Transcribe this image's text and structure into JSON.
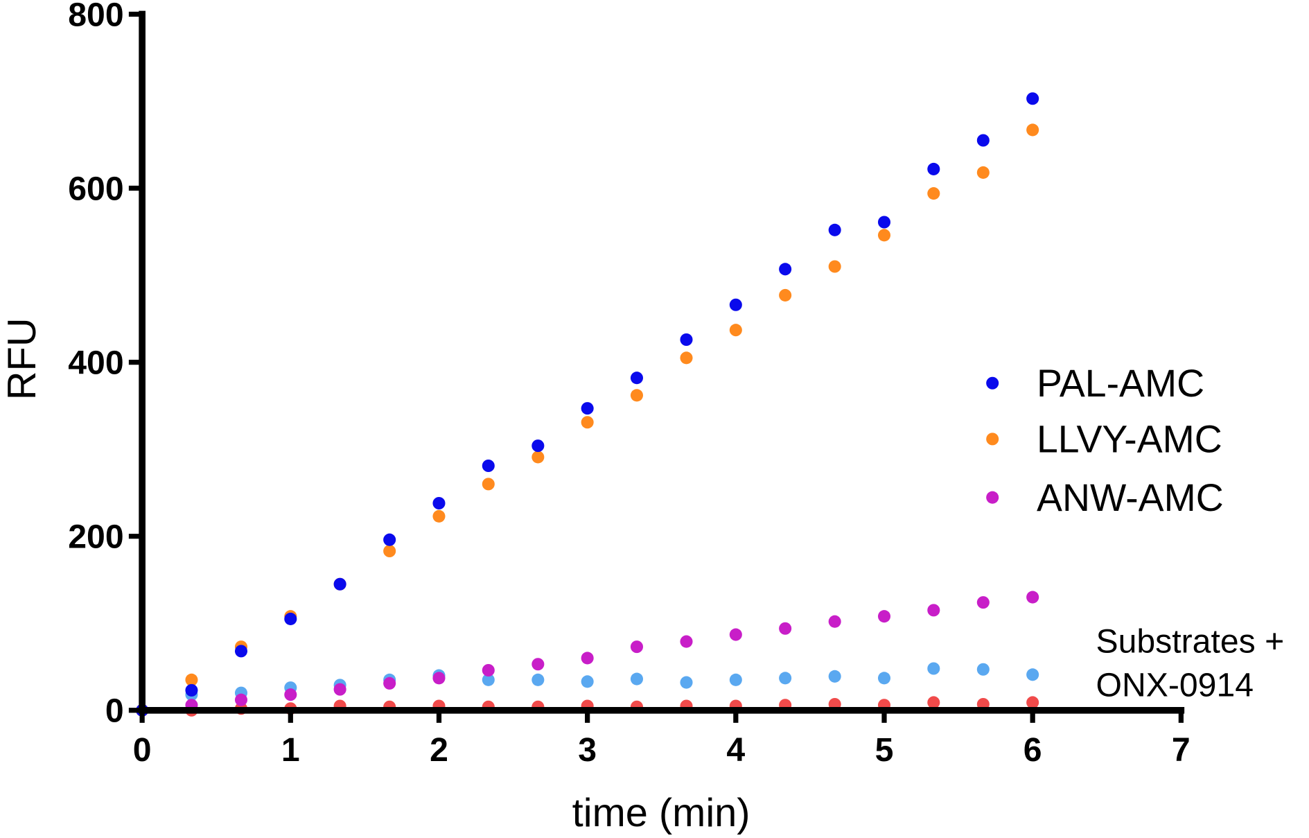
{
  "chart_data": {
    "type": "scatter",
    "xlabel": "time (min)",
    "ylabel": "RFU",
    "xlim": [
      0,
      7
    ],
    "ylim": [
      0,
      800
    ],
    "xticks": [
      "0",
      "1",
      "2",
      "3",
      "4",
      "5",
      "6",
      "7"
    ],
    "yticks": [
      "0",
      "200",
      "400",
      "600",
      "800"
    ],
    "grid": false,
    "legend_position": "right",
    "x": [
      0,
      0.333,
      0.667,
      1,
      1.333,
      1.667,
      2,
      2.333,
      2.667,
      3,
      3.333,
      3.667,
      4,
      4.333,
      4.667,
      5,
      5.333,
      5.667,
      6
    ],
    "series": [
      {
        "name": "PAL-AMC",
        "color": "#0a0aec",
        "values": [
          0,
          23,
          68,
          105,
          145,
          196,
          238,
          281,
          304,
          347,
          382,
          426,
          466,
          507,
          552,
          561,
          622,
          655,
          703
        ]
      },
      {
        "name": "LLVY-AMC",
        "color": "#ff8a1e",
        "values": [
          0,
          35,
          73,
          108,
          145,
          183,
          223,
          260,
          291,
          331,
          362,
          405,
          437,
          477,
          510,
          546,
          594,
          618,
          667
        ]
      },
      {
        "name": "ANW-AMC",
        "color": "#c81ec8",
        "values": [
          0,
          6,
          12,
          18,
          24,
          31,
          37,
          46,
          53,
          60,
          73,
          79,
          87,
          94,
          102,
          108,
          115,
          124,
          130
        ]
      },
      {
        "color": "#5aa8f0",
        "values": [
          0,
          18,
          20,
          26,
          29,
          35,
          40,
          35,
          35,
          33,
          36,
          32,
          35,
          37,
          39,
          37,
          48,
          47,
          41
        ]
      },
      {
        "color": "#f04a4a",
        "values": [
          0,
          0,
          2,
          2,
          5,
          4,
          5,
          4,
          4,
          5,
          4,
          5,
          5,
          6,
          7,
          6,
          9,
          7,
          9
        ]
      }
    ],
    "annotation": [
      "Substrates +",
      "ONX-0914"
    ]
  }
}
